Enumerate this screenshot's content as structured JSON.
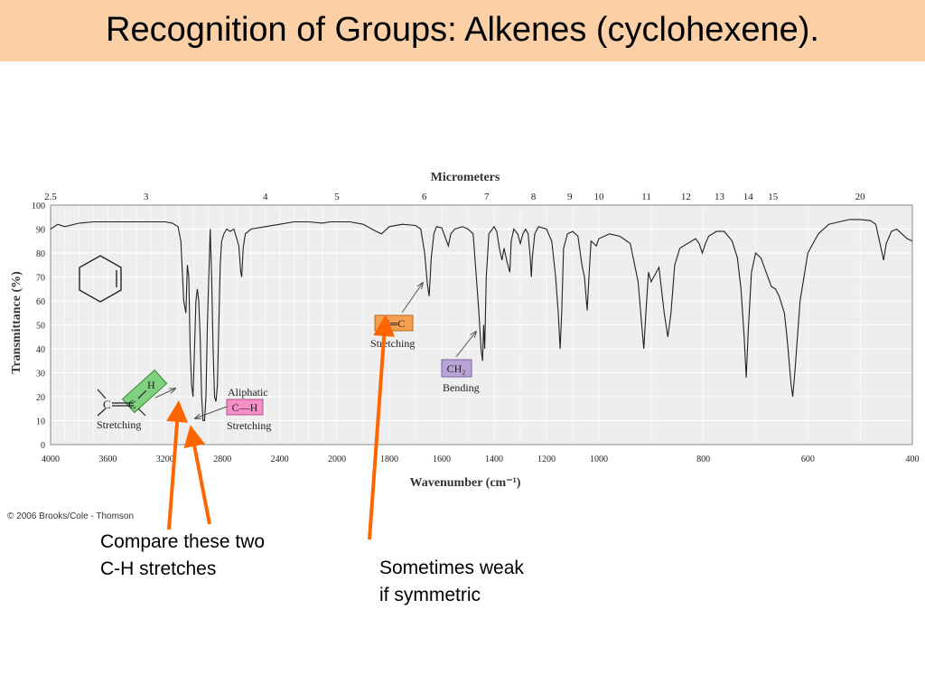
{
  "slide": {
    "title": "Recognition of Groups: Alkenes (cyclohexene).",
    "copyright": "© 2006 Brooks/Cole - Thomson",
    "annotations": {
      "compare_line1": "Compare these two",
      "compare_line2": "C-H stretches",
      "weak_line1": "Sometimes weak",
      "weak_line2": "if symmetric"
    }
  },
  "colors": {
    "title_bg": "#fbd0a6",
    "plot_bg": "#eeeeee",
    "grid": "#ffffff",
    "trace": "#222222",
    "arrow": "#ff6600",
    "vinyl_ch_box": "#7fd07f",
    "aliphatic_ch_box": "#f48fc8",
    "cc_box": "#f5a050",
    "ch2_box": "#b9a3d6"
  },
  "chart_data": {
    "type": "line",
    "title": "",
    "xlabel": "Wavenumber (cm⁻¹)",
    "x2label": "Micrometers",
    "ylabel": "Transmittance (%)",
    "ylim": [
      0,
      100
    ],
    "yticks": [
      0,
      10,
      20,
      30,
      40,
      50,
      60,
      70,
      80,
      90,
      100
    ],
    "xlim": [
      4000,
      400
    ],
    "x_axis_breaks": [
      2000,
      1000
    ],
    "xticks": [
      4000,
      3600,
      3200,
      2800,
      2400,
      2000,
      1800,
      1600,
      1400,
      1200,
      1000,
      800,
      600,
      400
    ],
    "x2ticks": [
      2.5,
      3,
      4,
      5,
      6,
      7,
      8,
      9,
      10,
      11,
      12,
      13,
      14,
      15,
      20
    ],
    "grid": true,
    "legend": "none",
    "series": [
      {
        "points": [
          [
            4000,
            90
          ],
          [
            3950,
            92
          ],
          [
            3900,
            91
          ],
          [
            3800,
            92.5
          ],
          [
            3700,
            93
          ],
          [
            3600,
            93
          ],
          [
            3500,
            93
          ],
          [
            3400,
            93
          ],
          [
            3300,
            93
          ],
          [
            3200,
            93
          ],
          [
            3150,
            92.5
          ],
          [
            3110,
            91
          ],
          [
            3090,
            85
          ],
          [
            3070,
            60
          ],
          [
            3055,
            55
          ],
          [
            3045,
            75
          ],
          [
            3035,
            70
          ],
          [
            3025,
            40
          ],
          [
            3015,
            25
          ],
          [
            3005,
            20
          ],
          [
            2995,
            40
          ],
          [
            2985,
            60
          ],
          [
            2975,
            65
          ],
          [
            2965,
            60
          ],
          [
            2955,
            45
          ],
          [
            2945,
            20
          ],
          [
            2935,
            10
          ],
          [
            2925,
            10
          ],
          [
            2915,
            20
          ],
          [
            2905,
            50
          ],
          [
            2895,
            70
          ],
          [
            2885,
            90
          ],
          [
            2875,
            70
          ],
          [
            2865,
            40
          ],
          [
            2855,
            20
          ],
          [
            2845,
            18
          ],
          [
            2835,
            25
          ],
          [
            2825,
            50
          ],
          [
            2815,
            75
          ],
          [
            2805,
            85
          ],
          [
            2790,
            88
          ],
          [
            2770,
            90
          ],
          [
            2745,
            89
          ],
          [
            2720,
            90
          ],
          [
            2700,
            86
          ],
          [
            2685,
            83
          ],
          [
            2672,
            72
          ],
          [
            2665,
            70
          ],
          [
            2655,
            82
          ],
          [
            2640,
            88
          ],
          [
            2600,
            90
          ],
          [
            2500,
            91
          ],
          [
            2400,
            92
          ],
          [
            2300,
            93
          ],
          [
            2200,
            93
          ],
          [
            2100,
            92.5
          ],
          [
            2050,
            93
          ],
          [
            2000,
            93
          ],
          [
            1950,
            93
          ],
          [
            1900,
            92
          ],
          [
            1850,
            89
          ],
          [
            1830,
            88
          ],
          [
            1800,
            91
          ],
          [
            1750,
            92
          ],
          [
            1700,
            91.5
          ],
          [
            1680,
            90
          ],
          [
            1665,
            80
          ],
          [
            1655,
            67
          ],
          [
            1648,
            62
          ],
          [
            1640,
            78
          ],
          [
            1630,
            88
          ],
          [
            1620,
            91
          ],
          [
            1600,
            90.5
          ],
          [
            1585,
            86
          ],
          [
            1575,
            83
          ],
          [
            1565,
            88
          ],
          [
            1550,
            90
          ],
          [
            1520,
            91
          ],
          [
            1500,
            90
          ],
          [
            1480,
            88
          ],
          [
            1468,
            70
          ],
          [
            1458,
            55
          ],
          [
            1450,
            40
          ],
          [
            1444,
            35
          ],
          [
            1440,
            50
          ],
          [
            1436,
            40
          ],
          [
            1430,
            70
          ],
          [
            1420,
            88
          ],
          [
            1400,
            91
          ],
          [
            1390,
            89
          ],
          [
            1380,
            82
          ],
          [
            1370,
            77
          ],
          [
            1362,
            82
          ],
          [
            1350,
            76
          ],
          [
            1340,
            72
          ],
          [
            1335,
            85
          ],
          [
            1325,
            90
          ],
          [
            1310,
            88
          ],
          [
            1300,
            84
          ],
          [
            1290,
            88
          ],
          [
            1280,
            90
          ],
          [
            1270,
            88
          ],
          [
            1262,
            78
          ],
          [
            1258,
            70
          ],
          [
            1254,
            78
          ],
          [
            1245,
            88
          ],
          [
            1230,
            91
          ],
          [
            1200,
            90
          ],
          [
            1180,
            85
          ],
          [
            1165,
            70
          ],
          [
            1155,
            55
          ],
          [
            1148,
            40
          ],
          [
            1142,
            55
          ],
          [
            1135,
            82
          ],
          [
            1120,
            88
          ],
          [
            1100,
            89
          ],
          [
            1080,
            87
          ],
          [
            1065,
            75
          ],
          [
            1055,
            70
          ],
          [
            1045,
            56
          ],
          [
            1038,
            70
          ],
          [
            1030,
            85
          ],
          [
            1020,
            84
          ],
          [
            1010,
            83
          ],
          [
            1000,
            86
          ],
          [
            980,
            88
          ],
          [
            960,
            87
          ],
          [
            940,
            84
          ],
          [
            925,
            68
          ],
          [
            918,
            50
          ],
          [
            914,
            40
          ],
          [
            910,
            55
          ],
          [
            905,
            72
          ],
          [
            900,
            68
          ],
          [
            895,
            70
          ],
          [
            885,
            74
          ],
          [
            875,
            55
          ],
          [
            868,
            45
          ],
          [
            862,
            55
          ],
          [
            855,
            75
          ],
          [
            845,
            82
          ],
          [
            830,
            84
          ],
          [
            815,
            86
          ],
          [
            808,
            84
          ],
          [
            802,
            80
          ],
          [
            796,
            84
          ],
          [
            790,
            87
          ],
          [
            775,
            89
          ],
          [
            760,
            89
          ],
          [
            745,
            85
          ],
          [
            735,
            78
          ],
          [
            728,
            65
          ],
          [
            722,
            45
          ],
          [
            718,
            28
          ],
          [
            714,
            48
          ],
          [
            708,
            72
          ],
          [
            700,
            80
          ],
          [
            690,
            78
          ],
          [
            680,
            72
          ],
          [
            670,
            66
          ],
          [
            662,
            65
          ],
          [
            655,
            62
          ],
          [
            645,
            55
          ],
          [
            640,
            45
          ],
          [
            636,
            35
          ],
          [
            632,
            25
          ],
          [
            629,
            20
          ],
          [
            625,
            30
          ],
          [
            615,
            60
          ],
          [
            600,
            80
          ],
          [
            580,
            88
          ],
          [
            560,
            92
          ],
          [
            540,
            93
          ],
          [
            520,
            94
          ],
          [
            500,
            94
          ],
          [
            480,
            93.5
          ],
          [
            470,
            92
          ],
          [
            460,
            82
          ],
          [
            455,
            77
          ],
          [
            450,
            84
          ],
          [
            440,
            89
          ],
          [
            430,
            90
          ],
          [
            420,
            88
          ],
          [
            410,
            86
          ],
          [
            400,
            85
          ]
        ]
      }
    ],
    "annotations": [
      {
        "id": "vinyl_ch",
        "atoms": [
          "C",
          "C",
          "H"
        ],
        "label": "Stretching"
      },
      {
        "id": "aliphatic_ch",
        "label_top": "Aliphatic",
        "box": "C—H",
        "label": "Stretching"
      },
      {
        "id": "c_eq_c",
        "box": "C═C",
        "label": "Stretching"
      },
      {
        "id": "ch2",
        "box": "CH₂",
        "label": "Bending"
      }
    ]
  }
}
